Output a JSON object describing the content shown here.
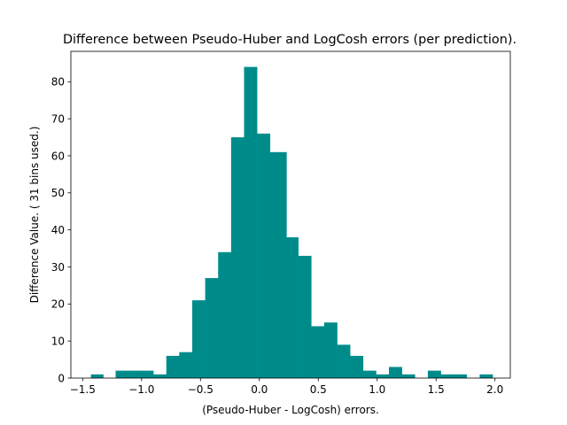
{
  "chart_data": {
    "type": "bar",
    "title": "Difference between  Pseudo-Huber and LogCosh errors (per prediction).",
    "xlabel": "(Pseudo-Huber - LogCosh) errors.",
    "ylabel": "Difference Value. ( 31 bins used.)",
    "xlim": [
      -1.6,
      2.13
    ],
    "ylim": [
      0,
      88.2
    ],
    "x_ticks": [
      -1.5,
      -1.0,
      -0.5,
      0.0,
      0.5,
      1.0,
      1.5,
      2.0
    ],
    "x_tick_labels": [
      "−1.5",
      "−1.0",
      "−0.5",
      "0.0",
      "0.5",
      "1.0",
      "1.5",
      "2.0"
    ],
    "y_ticks": [
      0,
      10,
      20,
      30,
      40,
      50,
      60,
      70,
      80
    ],
    "y_tick_labels": [
      "0",
      "10",
      "20",
      "30",
      "40",
      "50",
      "60",
      "70",
      "80"
    ],
    "grid": false,
    "legend": "none",
    "bar_color": "#008b8b",
    "bins": [
      {
        "x0": -1.43,
        "x1": -1.325,
        "count": 1
      },
      {
        "x0": -1.325,
        "x1": -1.22,
        "count": 0
      },
      {
        "x0": -1.22,
        "x1": -1.11,
        "count": 2
      },
      {
        "x0": -1.11,
        "x1": -1.0,
        "count": 2
      },
      {
        "x0": -1.0,
        "x1": -0.9,
        "count": 2
      },
      {
        "x0": -0.9,
        "x1": -0.79,
        "count": 1
      },
      {
        "x0": -0.79,
        "x1": -0.68,
        "count": 6
      },
      {
        "x0": -0.68,
        "x1": -0.57,
        "count": 7
      },
      {
        "x0": -0.57,
        "x1": -0.46,
        "count": 21
      },
      {
        "x0": -0.46,
        "x1": -0.35,
        "count": 27
      },
      {
        "x0": -0.35,
        "x1": -0.24,
        "count": 34
      },
      {
        "x0": -0.24,
        "x1": -0.13,
        "count": 65
      },
      {
        "x0": -0.13,
        "x1": -0.02,
        "count": 84
      },
      {
        "x0": -0.02,
        "x1": 0.09,
        "count": 66
      },
      {
        "x0": 0.09,
        "x1": 0.23,
        "count": 61
      },
      {
        "x0": 0.23,
        "x1": 0.33,
        "count": 38
      },
      {
        "x0": 0.33,
        "x1": 0.44,
        "count": 33
      },
      {
        "x0": 0.44,
        "x1": 0.55,
        "count": 14
      },
      {
        "x0": 0.55,
        "x1": 0.66,
        "count": 15
      },
      {
        "x0": 0.66,
        "x1": 0.77,
        "count": 9
      },
      {
        "x0": 0.77,
        "x1": 0.88,
        "count": 6
      },
      {
        "x0": 0.88,
        "x1": 0.99,
        "count": 2
      },
      {
        "x0": 0.99,
        "x1": 1.1,
        "count": 1
      },
      {
        "x0": 1.1,
        "x1": 1.21,
        "count": 3
      },
      {
        "x0": 1.21,
        "x1": 1.32,
        "count": 1
      },
      {
        "x0": 1.32,
        "x1": 1.43,
        "count": 0
      },
      {
        "x0": 1.43,
        "x1": 1.54,
        "count": 2
      },
      {
        "x0": 1.54,
        "x1": 1.65,
        "count": 1
      },
      {
        "x0": 1.65,
        "x1": 1.76,
        "count": 1
      },
      {
        "x0": 1.76,
        "x1": 1.87,
        "count": 0
      },
      {
        "x0": 1.87,
        "x1": 1.98,
        "count": 1
      }
    ]
  }
}
